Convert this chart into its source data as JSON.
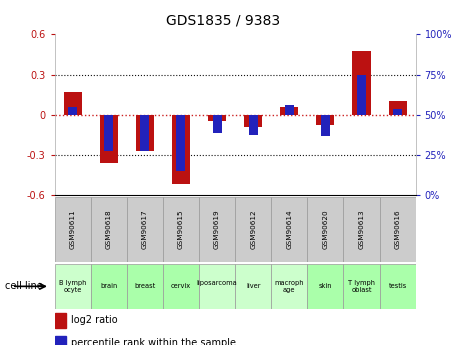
{
  "title": "GDS1835 / 9383",
  "gsm_labels": [
    "GSM90611",
    "GSM90618",
    "GSM90617",
    "GSM90615",
    "GSM90619",
    "GSM90612",
    "GSM90614",
    "GSM90620",
    "GSM90613",
    "GSM90616"
  ],
  "cell_lines": [
    "B lymph\nocyte",
    "brain",
    "breast",
    "cervix",
    "liposarcoma\n",
    "liver",
    "macroph\nage",
    "skin",
    "T lymph\noblast",
    "testis"
  ],
  "cell_line_colors": [
    "#ccffcc",
    "#aaffaa",
    "#aaffaa",
    "#aaffaa",
    "#ccffcc",
    "#ccffcc",
    "#ccffcc",
    "#aaffaa",
    "#aaffaa",
    "#aaffaa"
  ],
  "log2_ratio": [
    0.17,
    -0.36,
    -0.27,
    -0.52,
    -0.05,
    -0.09,
    0.06,
    -0.08,
    0.48,
    0.1
  ],
  "percentile_rank_scaled": [
    0.06,
    -0.27,
    -0.27,
    -0.42,
    -0.14,
    -0.15,
    0.07,
    -0.16,
    0.3,
    0.04
  ],
  "ylim": [
    -0.6,
    0.6
  ],
  "yticks_left": [
    -0.6,
    -0.3,
    0.0,
    0.3,
    0.6
  ],
  "yticks_left_labels": [
    "-0.6",
    "-0.3",
    "0",
    "0.3",
    "0.6"
  ],
  "yticks_right_labels": [
    "0%",
    "25%",
    "50%",
    "75%",
    "100%"
  ],
  "red_color": "#bb1111",
  "blue_color": "#2222bb",
  "zero_line_color": "#cc2222",
  "dot_line_color": "#111111",
  "gray_box_color": "#cccccc",
  "green_box_color": "#99ee99"
}
